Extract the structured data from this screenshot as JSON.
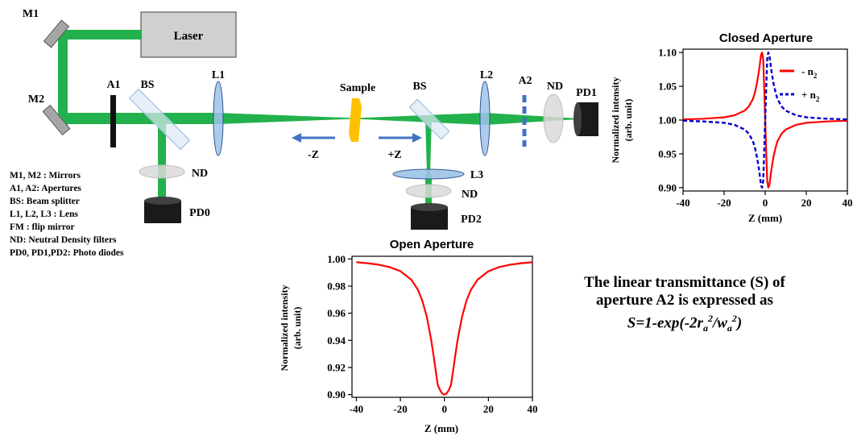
{
  "setup": {
    "components": {
      "m1": "M1",
      "m2": "M2",
      "laser": "Laser",
      "a1": "A1",
      "bs1": "BS",
      "l1": "L1",
      "sample": "Sample",
      "bs2": "BS",
      "l2": "L2",
      "a2": "A2",
      "nd_top": "ND",
      "pd1": "PD1",
      "nd_left": "ND",
      "pd0": "PD0",
      "l3": "L3",
      "nd_bottom": "ND",
      "pd2": "PD2",
      "minus_z": "-Z",
      "plus_z": "+Z"
    },
    "legend": [
      "M1, M2 : Mirrors",
      "A1, A2: Apertures",
      "BS: Beam splitter",
      "L1, L2, L3 : Lens",
      "FM : flip mirror",
      "ND: Neutral Density filters",
      "PD0, PD1,PD2: Photo diodes"
    ],
    "colors": {
      "beam": "#22b14c",
      "mirror": "#a6a6a6",
      "lens": "#9dc3e6",
      "sample": "#ffc000",
      "aperture_a2": "#4472c4",
      "detector": "#1a1a1a"
    }
  },
  "formula": {
    "line1": "The linear transmittance (S) of",
    "line2": "aperture A2 is expressed as",
    "line3": "S=1-exp(-2ra2/wa2)"
  },
  "chart_data": [
    {
      "type": "line",
      "title": "Closed Aperture",
      "xlabel": "Z (mm)",
      "ylabel": "Normalized intensity (arb. unit)",
      "xlim": [
        -40,
        40
      ],
      "ylim": [
        0.895,
        1.105
      ],
      "xticks": [
        "-40",
        "-20",
        "0",
        "20",
        "40"
      ],
      "yticks": [
        "0.90",
        "0.95",
        "1.00",
        "1.05",
        "1.10"
      ],
      "legend_position": "top-right",
      "series": [
        {
          "name": "- n2",
          "color": "#ff0000",
          "style": "solid",
          "x": [
            -40,
            -30,
            -20,
            -15,
            -10,
            -8,
            -6,
            -5,
            -4,
            -3,
            -2,
            -1.5,
            -1,
            -0.5,
            0,
            0.5,
            1,
            1.5,
            2,
            3,
            4,
            5,
            6,
            8,
            10,
            15,
            20,
            30,
            40
          ],
          "y": [
            1.001,
            1.002,
            1.004,
            1.007,
            1.014,
            1.02,
            1.031,
            1.041,
            1.055,
            1.074,
            1.097,
            1.1,
            1.09,
            1.05,
            1.0,
            0.95,
            0.91,
            0.9,
            0.903,
            0.926,
            0.945,
            0.959,
            0.969,
            0.98,
            0.986,
            0.993,
            0.996,
            0.998,
            0.999
          ]
        },
        {
          "name": "+ n2",
          "color": "#0000cc",
          "style": "dashed",
          "x": [
            -40,
            -30,
            -20,
            -15,
            -10,
            -8,
            -6,
            -5,
            -4,
            -3,
            -2,
            -1.5,
            -1,
            -0.5,
            0,
            0.5,
            1,
            1.5,
            2,
            3,
            4,
            5,
            6,
            8,
            10,
            15,
            20,
            30,
            40
          ],
          "y": [
            0.999,
            0.998,
            0.996,
            0.993,
            0.986,
            0.98,
            0.969,
            0.959,
            0.945,
            0.926,
            0.903,
            0.9,
            0.91,
            0.95,
            1.0,
            1.05,
            1.09,
            1.1,
            1.097,
            1.074,
            1.055,
            1.041,
            1.031,
            1.02,
            1.014,
            1.007,
            1.004,
            1.002,
            1.001
          ]
        }
      ]
    },
    {
      "type": "line",
      "title": "Open Aperture",
      "xlabel": "Z (mm)",
      "ylabel": "Normalized intensity (arb. unit)",
      "xlim": [
        -42,
        40
      ],
      "ylim": [
        0.898,
        1.002
      ],
      "xticks": [
        "-40",
        "-20",
        "0",
        "20",
        "40"
      ],
      "yticks": [
        "0.90",
        "0.92",
        "0.94",
        "0.96",
        "0.98",
        "1.00"
      ],
      "series": [
        {
          "name": "",
          "color": "#ff0000",
          "style": "solid",
          "x": [
            -40,
            -35,
            -30,
            -25,
            -20,
            -15,
            -12,
            -10,
            -8,
            -6,
            -5,
            -4,
            -3,
            -2,
            -1,
            0,
            1,
            2,
            3,
            4,
            5,
            6,
            8,
            10,
            12,
            15,
            20,
            25,
            30,
            35,
            40
          ],
          "y": [
            0.9976,
            0.9969,
            0.9958,
            0.9941,
            0.991,
            0.9846,
            0.9771,
            0.969,
            0.9573,
            0.9403,
            0.9296,
            0.9182,
            0.9071,
            0.9033,
            0.9008,
            0.9,
            0.9008,
            0.9033,
            0.9071,
            0.9182,
            0.9296,
            0.9403,
            0.9573,
            0.969,
            0.9771,
            0.9846,
            0.991,
            0.9941,
            0.9958,
            0.9969,
            0.9976
          ]
        }
      ]
    }
  ]
}
